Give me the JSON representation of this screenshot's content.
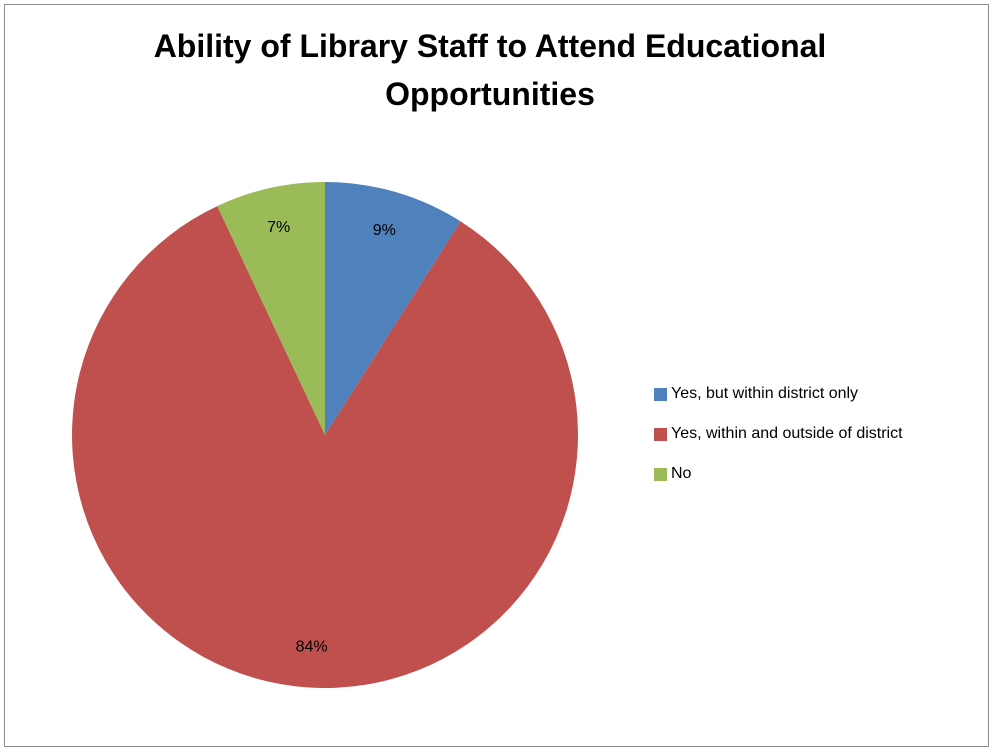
{
  "chart_data": {
    "type": "pie",
    "title": "Ability of Library Staff to Attend Educational Opportunities",
    "categories": [
      "Yes, but within district only",
      "Yes, within and outside of district",
      "No"
    ],
    "values": [
      9,
      84,
      7
    ],
    "data_labels": [
      "9%",
      "84%",
      "7%"
    ],
    "colors": [
      "#4f81bd",
      "#c0504d",
      "#9bbb59"
    ],
    "legend": "right",
    "start_angle": "top, clockwise"
  }
}
